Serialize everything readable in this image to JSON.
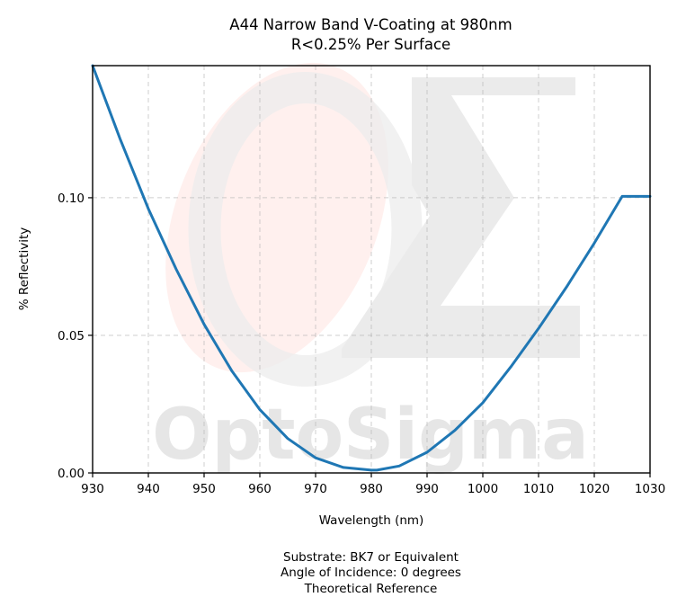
{
  "chart_data": {
    "type": "line",
    "title": "A44 Narrow Band V-Coating at 980nm",
    "subtitle": "R<0.25% Per Surface",
    "xlabel": "Wavelength (nm)",
    "ylabel": "% Reflectivity",
    "xlim": [
      930,
      1030
    ],
    "ylim": [
      0,
      0.148
    ],
    "xticks": [
      930,
      940,
      950,
      960,
      970,
      980,
      990,
      1000,
      1010,
      1020,
      1030
    ],
    "yticks": [
      0.0,
      0.05,
      0.1
    ],
    "ytick_labels": [
      "0.00",
      "0.05",
      "0.10"
    ],
    "grid": true,
    "series": [
      {
        "color": "#1f77b4",
        "x": [
          930,
          935,
          940,
          945,
          950,
          955,
          960,
          965,
          970,
          975,
          980,
          981,
          985,
          990,
          995,
          1000,
          1005,
          1010,
          1015,
          1020,
          1025,
          1030
        ],
        "y": [
          0.148,
          0.121,
          0.096,
          0.074,
          0.054,
          0.037,
          0.023,
          0.0125,
          0.0055,
          0.002,
          0.001,
          0.001,
          0.0025,
          0.0075,
          0.0155,
          0.0255,
          0.0385,
          0.0525,
          0.0675,
          0.0835,
          0.1005,
          0.1005
        ]
      }
    ],
    "watermark": "OptoSigma",
    "footnotes": [
      "Substrate: BK7 or Equivalent",
      "Angle of Incidence: 0 degrees",
      "Theoretical Reference"
    ]
  }
}
